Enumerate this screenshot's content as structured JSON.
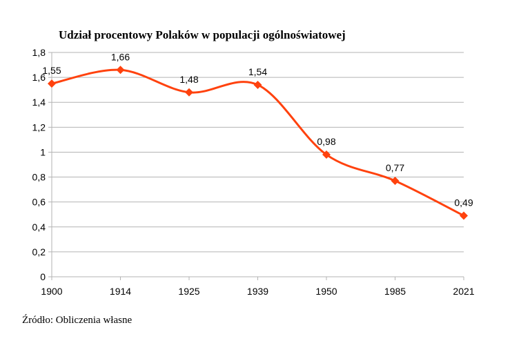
{
  "chart_data": {
    "type": "line",
    "title": "Udział procentowy Polaków w populacji ogólnoświatowej",
    "categories": [
      "1900",
      "1914",
      "1925",
      "1939",
      "1950",
      "1985",
      "2021"
    ],
    "series": [
      {
        "values": [
          1.55,
          1.66,
          1.48,
          1.54,
          0.98,
          0.77,
          0.49
        ],
        "color": "#ff420e",
        "smooth": true,
        "marker": "diamond"
      }
    ],
    "data_labels": [
      "1,55",
      "1,66",
      "1,48",
      "1,54",
      "0,98",
      "0,77",
      "0,49"
    ],
    "y_ticks": [
      "0",
      "0,2",
      "0,4",
      "0,6",
      "0,8",
      "1",
      "1,2",
      "1,4",
      "1,6",
      "1,8"
    ],
    "ylim": [
      0,
      1.8
    ],
    "ystep": 0.2,
    "grid": true,
    "xlabel": "",
    "ylabel": ""
  },
  "source_note": "Źródło: Obliczenia własne"
}
